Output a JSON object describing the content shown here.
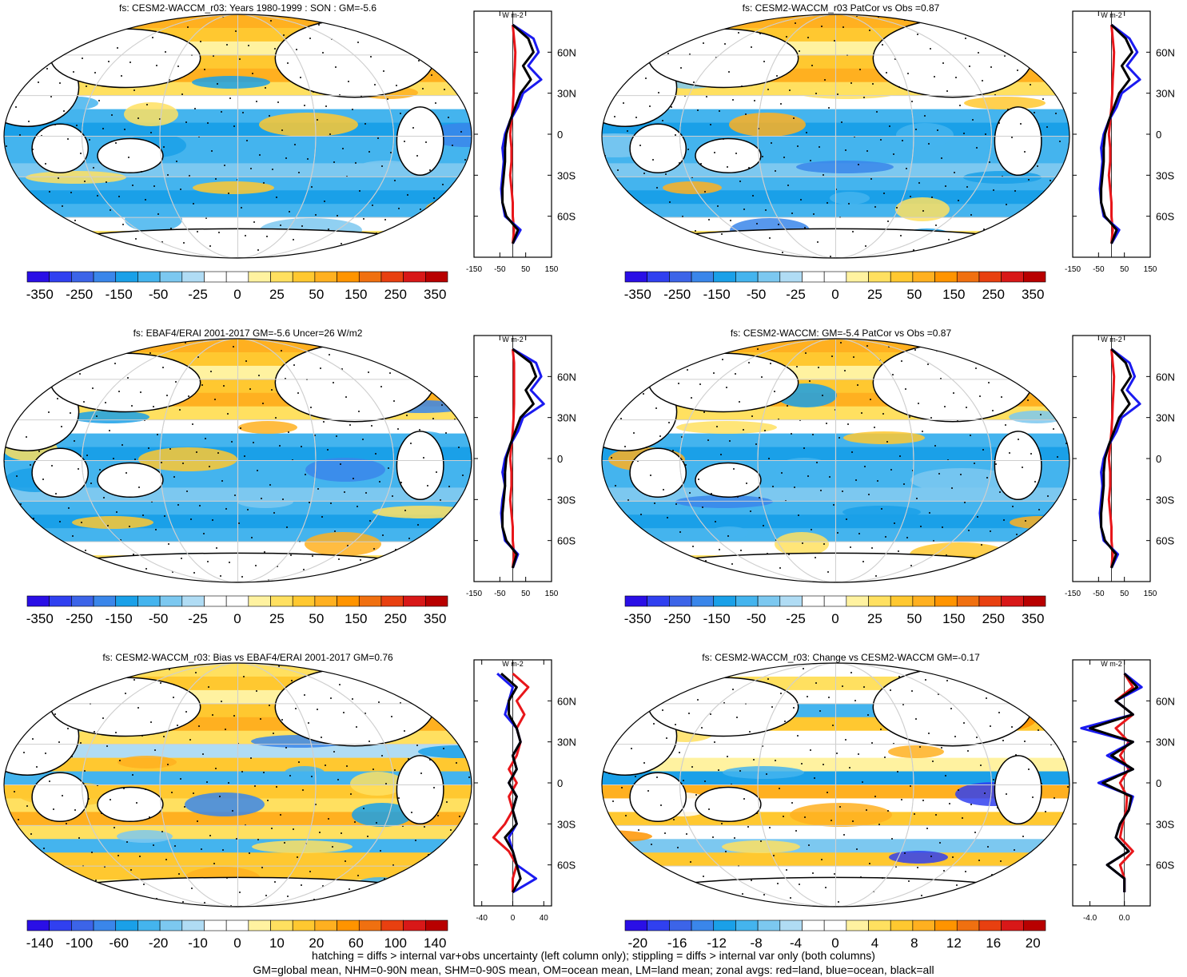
{
  "panels": [
    {
      "title": "fs: CESM2-WACCM_r03: Years 1980-1999 : SON : GM=-5.6",
      "colorbar": {
        "labels": [
          "-350",
          "-250",
          "-150",
          "-50",
          "-25",
          "0",
          "25",
          "50",
          "150",
          "250",
          "350"
        ]
      },
      "zonal": {
        "xticks": [
          "-150",
          "-50",
          "50",
          "150"
        ],
        "yticks": [
          "60N",
          "30N",
          "0",
          "30S",
          "60S"
        ],
        "unit": "W m-2"
      }
    },
    {
      "title": "fs: CESM2-WACCM_r03 PatCor vs Obs =0.87",
      "colorbar": {
        "labels": [
          "-350",
          "-250",
          "-150",
          "-50",
          "-25",
          "0",
          "25",
          "50",
          "150",
          "250",
          "350"
        ]
      },
      "zonal": {
        "xticks": [
          "-150",
          "-50",
          "50",
          "150"
        ],
        "yticks": [
          "60N",
          "30N",
          "0",
          "30S",
          "60S"
        ],
        "unit": "W m-2"
      }
    },
    {
      "title": "fs: EBAF4/ERAI 2001-2017 GM=-5.6 Uncer=26 W/m2",
      "colorbar": {
        "labels": [
          "-350",
          "-250",
          "-150",
          "-50",
          "-25",
          "0",
          "25",
          "50",
          "150",
          "250",
          "350"
        ]
      },
      "zonal": {
        "xticks": [
          "-150",
          "-50",
          "50",
          "150"
        ],
        "yticks": [
          "60N",
          "30N",
          "0",
          "30S",
          "60S"
        ],
        "unit": "W m-2"
      }
    },
    {
      "title": "fs: CESM2-WACCM: GM=-5.4 PatCor vs Obs =0.87",
      "colorbar": {
        "labels": [
          "-350",
          "-250",
          "-150",
          "-50",
          "-25",
          "0",
          "25",
          "50",
          "150",
          "250",
          "350"
        ]
      },
      "zonal": {
        "xticks": [
          "-150",
          "-50",
          "50",
          "150"
        ],
        "yticks": [
          "60N",
          "30N",
          "0",
          "30S",
          "60S"
        ],
        "unit": "W m-2"
      }
    },
    {
      "title": "fs: CESM2-WACCM_r03: Bias vs EBAF4/ERAI 2001-2017  GM=0.76",
      "colorbar": {
        "labels": [
          "-140",
          "-100",
          "-60",
          "-20",
          "-10",
          "0",
          "10",
          "20",
          "60",
          "100",
          "140"
        ]
      },
      "zonal": {
        "xticks": [
          "-40",
          "0",
          "40"
        ],
        "yticks": [
          "60N",
          "30N",
          "0",
          "30S",
          "60S"
        ],
        "unit": "W m-2"
      }
    },
    {
      "title": "fs: CESM2-WACCM_r03: Change vs CESM2-WACCM GM=-0.17",
      "colorbar": {
        "labels": [
          "-20",
          "-16",
          "-12",
          "-8",
          "-4",
          "0",
          "4",
          "8",
          "12",
          "16",
          "20"
        ]
      },
      "zonal": {
        "xticks": [
          "-4.0",
          "0.0"
        ],
        "yticks": [
          "60N",
          "30N",
          "0",
          "30S",
          "60S"
        ],
        "unit": "W m-2"
      }
    }
  ],
  "colors": [
    "#2a0fe6",
    "#3040f0",
    "#3c64e8",
    "#3a86ea",
    "#1aa0e8",
    "#44b4ee",
    "#7cc8f0",
    "#b0dcf4",
    "#ffffff",
    "#ffffff",
    "#fff2a0",
    "#ffe060",
    "#ffc830",
    "#ffb020",
    "#ff9400",
    "#f07010",
    "#e84010",
    "#d81818",
    "#b80000"
  ],
  "line_colors": {
    "land": "#e8161a",
    "ocean": "#1a1af0",
    "all": "#000000"
  },
  "footer": {
    "line1": "hatching = diffs > internal var+obs uncertainty (left column only); stippling = diffs > internal var only (both columns)",
    "line2": "GM=global mean, NHM=0-90N mean, SHM=0-90S mean, OM=ocean mean, LM=land mean; zonal avgs: red=land, blue=ocean, black=all"
  },
  "chart_data": [
    {
      "type": "heatmap",
      "title": "fs: CESM2-WACCM_r03: Years 1980-1999 : SON : GM=-5.6",
      "global_mean": -5.6,
      "colorbar": [
        -350,
        -250,
        -150,
        -50,
        -25,
        0,
        25,
        50,
        150,
        250,
        350
      ],
      "zonal_lat": [
        80,
        70,
        60,
        50,
        40,
        30,
        20,
        10,
        0,
        -10,
        -20,
        -30,
        -40,
        -50,
        -60,
        -70,
        -80
      ],
      "zonal": {
        "land": [
          0,
          5,
          10,
          8,
          5,
          3,
          0,
          -5,
          -10,
          -5,
          -5,
          -10,
          -5,
          0,
          0,
          5,
          0
        ],
        "ocean": [
          0,
          80,
          100,
          60,
          110,
          40,
          20,
          -10,
          -30,
          -40,
          -35,
          -40,
          -45,
          -40,
          -30,
          30,
          0
        ],
        "all": [
          0,
          60,
          80,
          40,
          70,
          30,
          10,
          -10,
          -25,
          -30,
          -30,
          -35,
          -40,
          -40,
          -25,
          20,
          0
        ]
      },
      "xlim": [
        -150,
        150
      ]
    },
    {
      "type": "heatmap",
      "title": "fs: CESM2-WACCM_r03 PatCor vs Obs =0.87",
      "pattern_correlation": 0.87,
      "colorbar": [
        -350,
        -250,
        -150,
        -50,
        -25,
        0,
        25,
        50,
        150,
        250,
        350
      ],
      "zonal_lat": [
        80,
        70,
        60,
        50,
        40,
        30,
        20,
        10,
        0,
        -10,
        -20,
        -30,
        -40,
        -50,
        -60,
        -70,
        -80
      ],
      "zonal": {
        "land": [
          0,
          5,
          10,
          8,
          5,
          3,
          0,
          -5,
          -10,
          -5,
          -5,
          -10,
          -5,
          0,
          0,
          5,
          0
        ],
        "ocean": [
          0,
          70,
          100,
          60,
          110,
          40,
          20,
          -10,
          -30,
          -40,
          -35,
          -40,
          -45,
          -40,
          -30,
          30,
          0
        ],
        "all": [
          0,
          55,
          80,
          40,
          70,
          30,
          10,
          -10,
          -25,
          -30,
          -30,
          -35,
          -40,
          -40,
          -25,
          20,
          0
        ]
      },
      "xlim": [
        -150,
        150
      ]
    },
    {
      "type": "heatmap",
      "title": "fs: EBAF4/ERAI 2001-2017 GM=-5.6 Uncer=26 W/m2",
      "global_mean": -5.6,
      "uncertainty": 26,
      "colorbar": [
        -350,
        -250,
        -150,
        -50,
        -25,
        0,
        25,
        50,
        150,
        250,
        350
      ],
      "zonal_lat": [
        80,
        70,
        60,
        50,
        40,
        30,
        20,
        10,
        0,
        -10,
        -20,
        -30,
        -40,
        -50,
        -60,
        -70,
        -80
      ],
      "zonal": {
        "land": [
          0,
          5,
          5,
          5,
          5,
          3,
          0,
          -5,
          -10,
          -5,
          -5,
          -10,
          -5,
          0,
          0,
          5,
          0
        ],
        "ocean": [
          0,
          90,
          110,
          70,
          120,
          40,
          20,
          -10,
          -30,
          -40,
          -30,
          -40,
          -45,
          -40,
          -30,
          20,
          0
        ],
        "all": [
          0,
          70,
          90,
          50,
          80,
          30,
          10,
          -10,
          -25,
          -30,
          -30,
          -35,
          -40,
          -40,
          -25,
          15,
          0
        ]
      },
      "xlim": [
        -150,
        150
      ]
    },
    {
      "type": "heatmap",
      "title": "fs: CESM2-WACCM: GM=-5.4 PatCor vs Obs =0.87",
      "global_mean": -5.4,
      "pattern_correlation": 0.87,
      "colorbar": [
        -350,
        -250,
        -150,
        -50,
        -25,
        0,
        25,
        50,
        150,
        250,
        350
      ],
      "zonal_lat": [
        80,
        70,
        60,
        50,
        40,
        30,
        20,
        10,
        0,
        -10,
        -20,
        -30,
        -40,
        -50,
        -60,
        -70,
        -80
      ],
      "zonal": {
        "land": [
          0,
          5,
          10,
          8,
          5,
          3,
          0,
          -5,
          -10,
          -5,
          -5,
          -10,
          -5,
          0,
          0,
          5,
          0
        ],
        "ocean": [
          0,
          70,
          90,
          60,
          110,
          40,
          20,
          -10,
          -30,
          -40,
          -35,
          -40,
          -45,
          -40,
          -30,
          25,
          0
        ],
        "all": [
          0,
          55,
          75,
          40,
          70,
          30,
          10,
          -10,
          -25,
          -30,
          -30,
          -35,
          -40,
          -40,
          -25,
          18,
          0
        ]
      },
      "xlim": [
        -150,
        150
      ]
    },
    {
      "type": "heatmap",
      "title": "fs: CESM2-WACCM_r03: Bias vs EBAF4/ERAI 2001-2017  GM=0.76",
      "global_mean": 0.76,
      "colorbar": [
        -140,
        -100,
        -60,
        -20,
        -10,
        0,
        10,
        20,
        60,
        100,
        140
      ],
      "zonal_lat": [
        80,
        70,
        60,
        50,
        40,
        30,
        20,
        10,
        0,
        -10,
        -20,
        -30,
        -40,
        -50,
        -60,
        -70,
        -80
      ],
      "zonal": {
        "land": [
          0,
          20,
          5,
          15,
          5,
          10,
          5,
          -5,
          5,
          -5,
          0,
          -10,
          -25,
          -5,
          5,
          0,
          0
        ],
        "ocean": [
          -20,
          0,
          -5,
          -10,
          5,
          10,
          0,
          5,
          -5,
          5,
          0,
          5,
          -5,
          0,
          5,
          30,
          0
        ],
        "all": [
          -15,
          5,
          -5,
          -5,
          5,
          10,
          0,
          5,
          -5,
          5,
          0,
          5,
          -10,
          0,
          5,
          10,
          0
        ]
      },
      "xlim": [
        -50,
        50
      ]
    },
    {
      "type": "heatmap",
      "title": "fs: CESM2-WACCM_r03: Change vs CESM2-WACCM GM=-0.17",
      "global_mean": -0.17,
      "colorbar": [
        -20,
        -16,
        -12,
        -8,
        -4,
        0,
        4,
        8,
        12,
        16,
        20
      ],
      "zonal_lat": [
        80,
        70,
        60,
        50,
        40,
        30,
        20,
        10,
        0,
        -10,
        -20,
        -30,
        -40,
        -50,
        -60,
        -70,
        -80
      ],
      "zonal": {
        "land": [
          0,
          1,
          -1,
          1,
          -1,
          0.5,
          -0.5,
          0.5,
          -0.5,
          0.3,
          0.2,
          -0.2,
          -0.5,
          1,
          -0.5,
          0,
          0
        ],
        "ocean": [
          0,
          2,
          -1,
          1,
          -5,
          1,
          -2,
          1,
          -3,
          1,
          0.5,
          -0.5,
          -1,
          0.5,
          -2,
          0,
          0
        ],
        "all": [
          0,
          1.5,
          -1,
          1,
          -4,
          1,
          -1.5,
          1,
          -2.5,
          0.8,
          0.5,
          -0.5,
          -1,
          0.5,
          -2,
          0,
          0
        ]
      },
      "xlim": [
        -6,
        3
      ]
    }
  ]
}
